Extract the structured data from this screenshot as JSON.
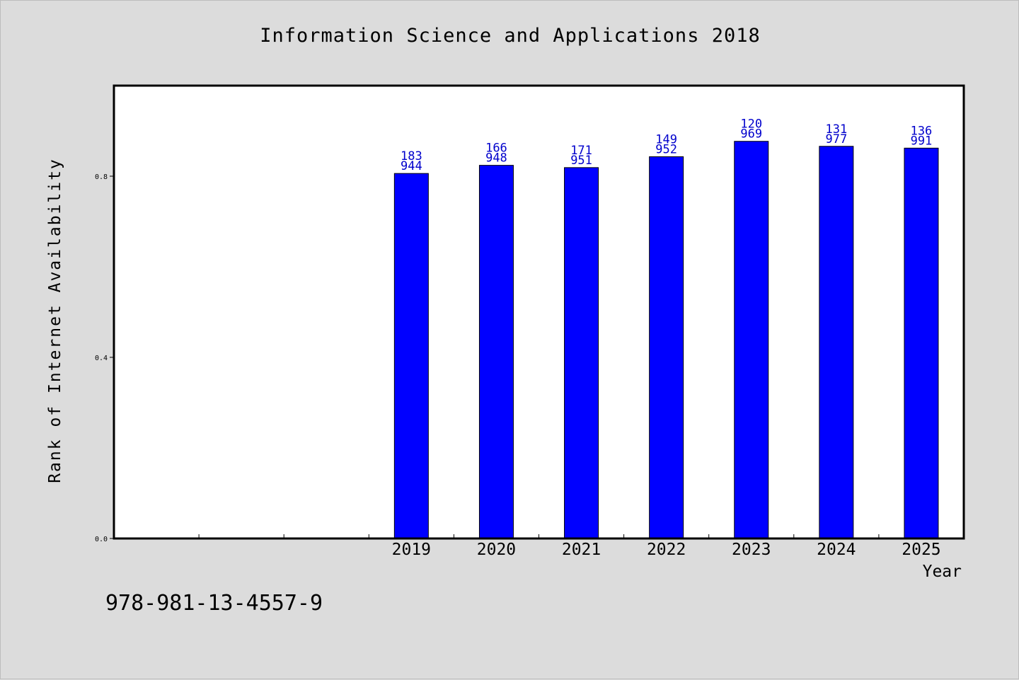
{
  "chart_data": {
    "type": "bar",
    "title": "Information Science and Applications 2018",
    "xlabel": "Year",
    "ylabel": "Rank of Internet Availability",
    "categories": [
      "2019",
      "2020",
      "2021",
      "2022",
      "2023",
      "2024",
      "2025"
    ],
    "values": [
      0.806,
      0.824,
      0.819,
      0.843,
      0.877,
      0.866,
      0.862
    ],
    "data_labels": [
      [
        "183",
        "944"
      ],
      [
        "166",
        "948"
      ],
      [
        "171",
        "951"
      ],
      [
        "149",
        "952"
      ],
      [
        "120",
        "969"
      ],
      [
        "131",
        "977"
      ],
      [
        "136",
        "991"
      ]
    ],
    "ylim": [
      0,
      1.0
    ],
    "yticks": [
      "0.0",
      "0.4",
      "0.8"
    ],
    "grid": false,
    "colors": {
      "bar": "#0000ff",
      "label": "#0000cc",
      "background": "#dcdcdc",
      "plot": "#ffffff"
    }
  },
  "footer": {
    "isbn": "978-981-13-4557-9"
  }
}
